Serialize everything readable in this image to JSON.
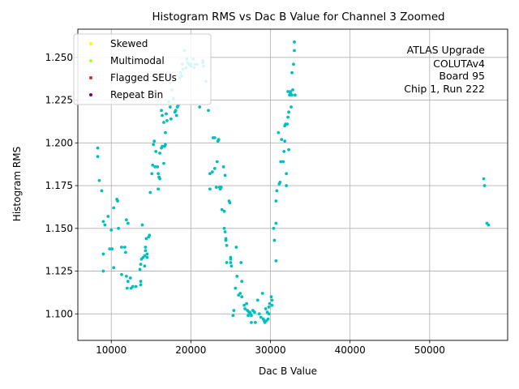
{
  "chart_data": {
    "type": "scatter",
    "title": "Histogram RMS vs Dac B Value for Channel 3 Zoomed",
    "xlabel": "Dac B Value",
    "ylabel": "Histogram RMS",
    "xlim": [
      5800,
      59800
    ],
    "ylim": [
      1.0845,
      1.2665
    ],
    "xticks": [
      10000,
      20000,
      30000,
      40000,
      50000
    ],
    "xtick_labels": [
      "10000",
      "20000",
      "30000",
      "40000",
      "50000"
    ],
    "yticks": [
      1.1,
      1.125,
      1.15,
      1.175,
      1.2,
      1.225,
      1.25
    ],
    "ytick_labels": [
      "1.100",
      "1.125",
      "1.150",
      "1.175",
      "1.200",
      "1.225",
      "1.250"
    ],
    "grid": true,
    "legend_position": "top-left",
    "legend": [
      {
        "label": "Skewed",
        "color": "#ffff00"
      },
      {
        "label": "Multimodal",
        "color": "#adff2f"
      },
      {
        "label": "Flagged SEUs",
        "color": "#d62728"
      },
      {
        "label": "Repeat Bin",
        "color": "#800080"
      }
    ],
    "annotation": [
      "ATLAS Upgrade",
      "COLUTAv4",
      "Board 95",
      "Chip 1, Run 222"
    ],
    "series": [
      {
        "name": "data",
        "color": "#00bfbf",
        "points": [
          [
            8300,
            1.197
          ],
          [
            8300,
            1.192
          ],
          [
            8500,
            1.178
          ],
          [
            8800,
            1.172
          ],
          [
            9000,
            1.154
          ],
          [
            9200,
            1.152
          ],
          [
            9000,
            1.135
          ],
          [
            9000,
            1.125
          ],
          [
            9600,
            1.157
          ],
          [
            9800,
            1.138
          ],
          [
            10000,
            1.149
          ],
          [
            10100,
            1.138
          ],
          [
            10300,
            1.127
          ],
          [
            10300,
            1.162
          ],
          [
            10700,
            1.167
          ],
          [
            10800,
            1.166
          ],
          [
            10900,
            1.15
          ],
          [
            11300,
            1.139
          ],
          [
            11300,
            1.123
          ],
          [
            11700,
            1.139
          ],
          [
            11800,
            1.136
          ],
          [
            11900,
            1.155
          ],
          [
            12100,
            1.153
          ],
          [
            11900,
            1.122
          ],
          [
            12100,
            1.119
          ],
          [
            12000,
            1.115
          ],
          [
            12400,
            1.121
          ],
          [
            12500,
            1.115
          ],
          [
            12700,
            1.116
          ],
          [
            13100,
            1.116
          ],
          [
            13700,
            1.119
          ],
          [
            13700,
            1.117
          ],
          [
            13600,
            1.126
          ],
          [
            13700,
            1.129
          ],
          [
            13800,
            1.132
          ],
          [
            13900,
            1.152
          ],
          [
            14000,
            1.133
          ],
          [
            14200,
            1.134
          ],
          [
            14200,
            1.128
          ],
          [
            14300,
            1.139
          ],
          [
            14300,
            1.137
          ],
          [
            14400,
            1.144
          ],
          [
            14500,
            1.133
          ],
          [
            14500,
            1.135
          ],
          [
            14700,
            1.145
          ],
          [
            14800,
            1.146
          ],
          [
            14900,
            1.171
          ],
          [
            15100,
            1.182
          ],
          [
            15200,
            1.187
          ],
          [
            15300,
            1.199
          ],
          [
            15400,
            1.201
          ],
          [
            15500,
            1.186
          ],
          [
            15600,
            1.195
          ],
          [
            15800,
            1.186
          ],
          [
            15900,
            1.173
          ],
          [
            15900,
            1.182
          ],
          [
            16000,
            1.18
          ],
          [
            16100,
            1.179
          ],
          [
            16100,
            1.194
          ],
          [
            16300,
            1.197
          ],
          [
            16400,
            1.198
          ],
          [
            16300,
            1.219
          ],
          [
            16400,
            1.216
          ],
          [
            16600,
            1.188
          ],
          [
            16600,
            1.212
          ],
          [
            16700,
            1.198
          ],
          [
            16800,
            1.199
          ],
          [
            16800,
            1.206
          ],
          [
            16900,
            1.217
          ],
          [
            17000,
            1.213
          ],
          [
            17200,
            1.224
          ],
          [
            17400,
            1.221
          ],
          [
            17500,
            1.214
          ],
          [
            17600,
            1.231
          ],
          [
            17800,
            1.226
          ],
          [
            18000,
            1.218
          ],
          [
            18100,
            1.219
          ],
          [
            18200,
            1.216
          ],
          [
            18300,
            1.221
          ],
          [
            18400,
            1.222
          ],
          [
            18600,
            1.238
          ],
          [
            18700,
            1.241
          ],
          [
            18800,
            1.239
          ],
          [
            18900,
            1.246
          ],
          [
            19000,
            1.243
          ],
          [
            19200,
            1.254
          ],
          [
            19400,
            1.244
          ],
          [
            19500,
            1.249
          ],
          [
            19600,
            1.247
          ],
          [
            19800,
            1.246
          ],
          [
            20000,
            1.246
          ],
          [
            20000,
            1.245
          ],
          [
            20300,
            1.249
          ],
          [
            20400,
            1.244
          ],
          [
            20500,
            1.246
          ],
          [
            20800,
            1.246
          ],
          [
            21100,
            1.221
          ],
          [
            21500,
            1.248
          ],
          [
            21500,
            1.247
          ],
          [
            21600,
            1.245
          ],
          [
            21900,
            1.236
          ],
          [
            22200,
            1.219
          ],
          [
            22400,
            1.173
          ],
          [
            22400,
            1.182
          ],
          [
            22700,
            1.183
          ],
          [
            22800,
            1.203
          ],
          [
            23000,
            1.185
          ],
          [
            23000,
            1.203
          ],
          [
            23200,
            1.174
          ],
          [
            23300,
            1.189
          ],
          [
            23400,
            1.201
          ],
          [
            23500,
            1.202
          ],
          [
            23600,
            1.174
          ],
          [
            23700,
            1.173
          ],
          [
            23800,
            1.174
          ],
          [
            23900,
            1.161
          ],
          [
            24100,
            1.186
          ],
          [
            24200,
            1.16
          ],
          [
            24200,
            1.15
          ],
          [
            24300,
            1.148
          ],
          [
            24300,
            1.181
          ],
          [
            24400,
            1.144
          ],
          [
            24400,
            1.143
          ],
          [
            24500,
            1.13
          ],
          [
            24500,
            1.14
          ],
          [
            24800,
            1.166
          ],
          [
            24900,
            1.165
          ],
          [
            25000,
            1.13
          ],
          [
            25000,
            1.133
          ],
          [
            25000,
            1.132
          ],
          [
            25100,
            1.128
          ],
          [
            25300,
            1.099
          ],
          [
            25400,
            1.102
          ],
          [
            25600,
            1.115
          ],
          [
            25700,
            1.139
          ],
          [
            25800,
            1.122
          ],
          [
            26000,
            1.111
          ],
          [
            26200,
            1.112
          ],
          [
            26300,
            1.13
          ],
          [
            26400,
            1.11
          ],
          [
            26400,
            1.119
          ],
          [
            26700,
            1.105
          ],
          [
            26800,
            1.103
          ],
          [
            27000,
            1.106
          ],
          [
            27100,
            1.102
          ],
          [
            27200,
            1.099
          ],
          [
            27300,
            1.101
          ],
          [
            27400,
            1.101
          ],
          [
            27500,
            1.1
          ],
          [
            27600,
            1.099
          ],
          [
            27600,
            1.095
          ],
          [
            27800,
            1.102
          ],
          [
            28000,
            1.101
          ],
          [
            28100,
            1.095
          ],
          [
            28400,
            1.108
          ],
          [
            28600,
            1.1
          ],
          [
            28800,
            1.098
          ],
          [
            29000,
            1.112
          ],
          [
            29100,
            1.097
          ],
          [
            29200,
            1.096
          ],
          [
            29300,
            1.095
          ],
          [
            29400,
            1.103
          ],
          [
            29500,
            1.096
          ],
          [
            29600,
            1.101
          ],
          [
            29700,
            1.097
          ],
          [
            29800,
            1.104
          ],
          [
            29800,
            1.1
          ],
          [
            29900,
            1.106
          ],
          [
            30100,
            1.11
          ],
          [
            30200,
            1.108
          ],
          [
            30200,
            1.105
          ],
          [
            30400,
            1.15
          ],
          [
            30500,
            1.143
          ],
          [
            30700,
            1.153
          ],
          [
            30700,
            1.131
          ],
          [
            30700,
            1.166
          ],
          [
            30800,
            1.172
          ],
          [
            31000,
            1.206
          ],
          [
            31100,
            1.176
          ],
          [
            31200,
            1.177
          ],
          [
            31300,
            1.189
          ],
          [
            31400,
            1.202
          ],
          [
            31600,
            1.189
          ],
          [
            31700,
            1.195
          ],
          [
            31800,
            1.201
          ],
          [
            31800,
            1.21
          ],
          [
            31900,
            1.211
          ],
          [
            32000,
            1.175
          ],
          [
            32000,
            1.182
          ],
          [
            32100,
            1.211
          ],
          [
            32200,
            1.215
          ],
          [
            32200,
            1.23
          ],
          [
            32300,
            1.218
          ],
          [
            32300,
            1.196
          ],
          [
            32400,
            1.228
          ],
          [
            32500,
            1.23
          ],
          [
            32500,
            1.229
          ],
          [
            32600,
            1.221
          ],
          [
            32700,
            1.241
          ],
          [
            32700,
            1.228
          ],
          [
            32800,
            1.231
          ],
          [
            32900,
            1.246
          ],
          [
            33000,
            1.259
          ],
          [
            33000,
            1.254
          ],
          [
            33100,
            1.228
          ],
          [
            56800,
            1.179
          ],
          [
            56900,
            1.175
          ],
          [
            57200,
            1.153
          ],
          [
            57400,
            1.152
          ]
        ]
      }
    ]
  }
}
